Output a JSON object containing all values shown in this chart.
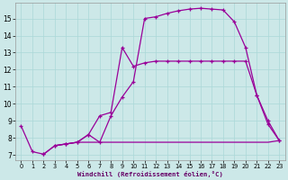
{
  "xlabel": "Windchill (Refroidissement éolien,°C)",
  "bg_color": "#cce8e8",
  "line_color": "#990099",
  "xlim": [
    -0.5,
    23.5
  ],
  "ylim": [
    6.7,
    15.9
  ],
  "yticks": [
    7,
    8,
    9,
    10,
    11,
    12,
    13,
    14,
    15
  ],
  "xticks": [
    0,
    1,
    2,
    3,
    4,
    5,
    6,
    7,
    8,
    9,
    10,
    11,
    12,
    13,
    14,
    15,
    16,
    17,
    18,
    19,
    20,
    21,
    22,
    23
  ],
  "curve1_x": [
    0,
    1,
    2,
    3,
    4,
    5,
    6,
    7,
    8,
    9,
    10,
    11,
    12,
    13,
    14,
    15,
    16,
    17,
    18,
    19,
    20,
    21,
    22,
    23
  ],
  "curve1_y": [
    8.7,
    7.2,
    7.05,
    7.55,
    7.65,
    7.75,
    8.2,
    7.75,
    9.3,
    10.4,
    11.3,
    15.0,
    15.1,
    15.3,
    15.45,
    15.55,
    15.6,
    15.55,
    15.5,
    14.8,
    13.3,
    10.5,
    9.0,
    7.85
  ],
  "curve2_x": [
    2,
    3,
    4,
    5,
    6,
    7,
    8,
    9,
    10,
    11,
    12,
    13,
    14,
    15,
    16,
    17,
    18,
    19,
    20,
    21,
    22,
    23
  ],
  "curve2_y": [
    7.05,
    7.55,
    7.65,
    7.75,
    8.2,
    9.3,
    9.5,
    13.3,
    12.2,
    12.4,
    12.5,
    12.5,
    12.5,
    12.5,
    12.5,
    12.5,
    12.5,
    12.5,
    12.5,
    10.5,
    8.8,
    7.85
  ],
  "curve3_x": [
    3,
    4,
    5,
    6,
    7,
    8,
    9,
    10,
    11,
    12,
    13,
    14,
    15,
    16,
    17,
    18,
    19,
    20,
    21,
    22,
    23
  ],
  "curve3_y": [
    7.55,
    7.65,
    7.75,
    7.75,
    7.75,
    7.75,
    7.75,
    7.75,
    7.75,
    7.75,
    7.75,
    7.75,
    7.75,
    7.75,
    7.75,
    7.75,
    7.75,
    7.75,
    7.75,
    7.75,
    7.85
  ]
}
